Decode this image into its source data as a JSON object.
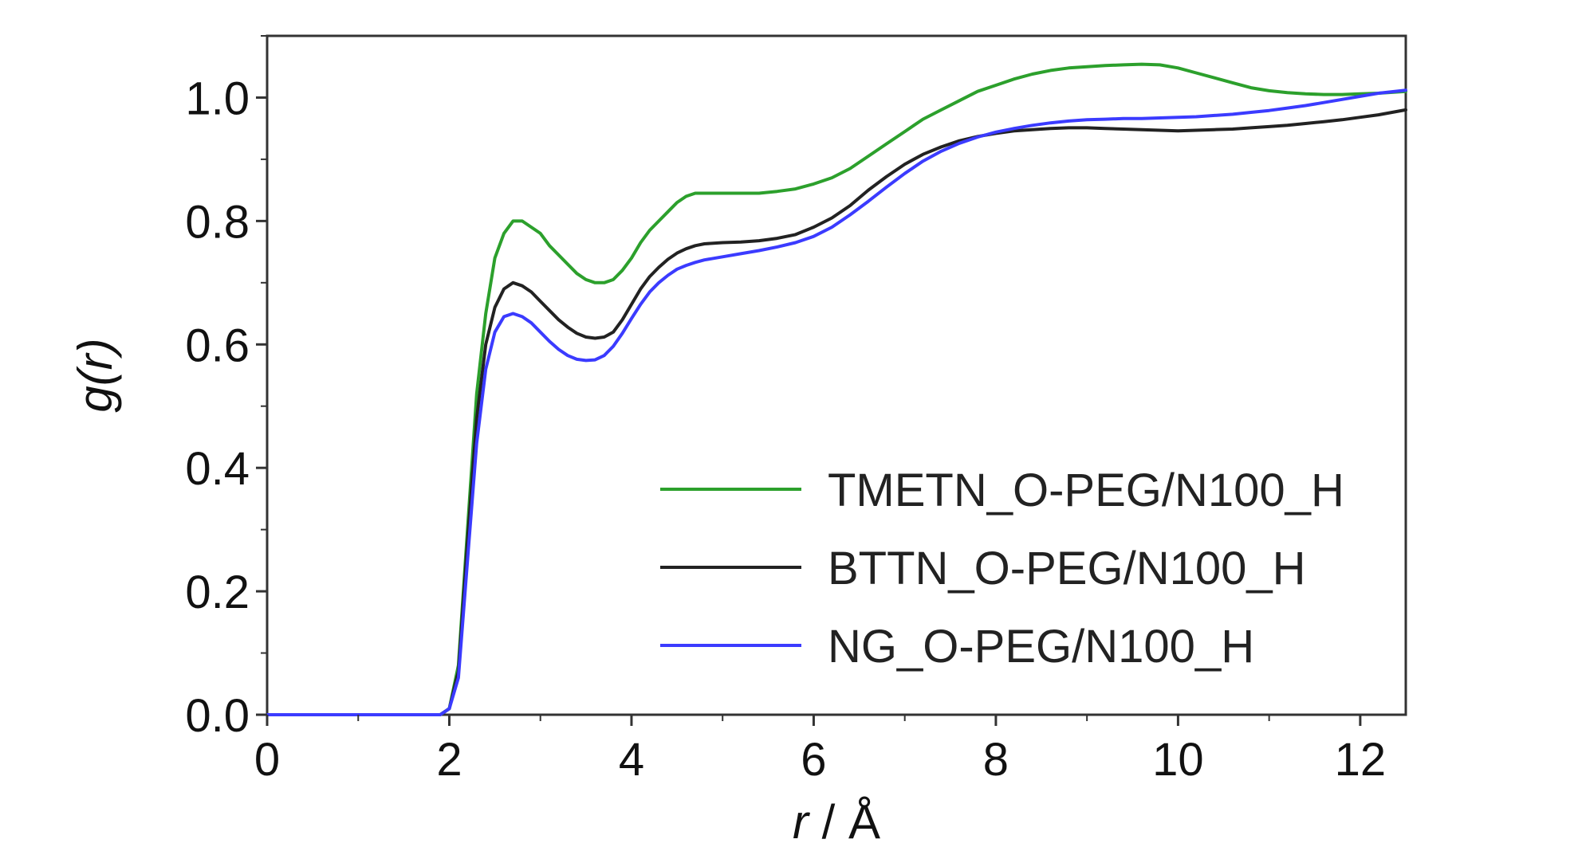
{
  "chart_data": {
    "type": "line",
    "title": "",
    "xlabel_var": "r",
    "xlabel_unit": " / Å",
    "ylabel_var": "g(",
    "ylabel_var_italic": "r",
    "ylabel_close": ")",
    "xlim": [
      0,
      12.5
    ],
    "ylim": [
      0,
      1.1
    ],
    "x_ticks": [
      0,
      2,
      4,
      6,
      8,
      10,
      12
    ],
    "x_tick_labels": [
      "0",
      "2",
      "4",
      "6",
      "8",
      "10",
      "12"
    ],
    "y_ticks": [
      0,
      0.2,
      0.4,
      0.6,
      0.8,
      1.0
    ],
    "y_tick_labels": [
      "0.0",
      "0.2",
      "0.4",
      "0.6",
      "0.8",
      "1.0"
    ],
    "grid": false,
    "legend_position": "bottom-right",
    "series": [
      {
        "name": "TMETN_O-PEG/N100_H",
        "color": "#2ca02c",
        "x": [
          0,
          1.9,
          2.0,
          2.1,
          2.2,
          2.3,
          2.4,
          2.5,
          2.6,
          2.7,
          2.8,
          2.9,
          3.0,
          3.1,
          3.2,
          3.3,
          3.4,
          3.5,
          3.6,
          3.7,
          3.8,
          3.9,
          4.0,
          4.1,
          4.2,
          4.3,
          4.4,
          4.5,
          4.6,
          4.7,
          4.8,
          5.0,
          5.2,
          5.4,
          5.6,
          5.8,
          6.0,
          6.2,
          6.4,
          6.6,
          6.8,
          7.0,
          7.2,
          7.4,
          7.6,
          7.8,
          8.0,
          8.2,
          8.4,
          8.6,
          8.8,
          9.0,
          9.2,
          9.4,
          9.6,
          9.8,
          10.0,
          10.2,
          10.4,
          10.6,
          10.8,
          11.0,
          11.2,
          11.4,
          11.6,
          11.8,
          12.0,
          12.2,
          12.5
        ],
        "y": [
          0.0,
          0.0,
          0.01,
          0.08,
          0.3,
          0.52,
          0.65,
          0.74,
          0.78,
          0.8,
          0.8,
          0.79,
          0.78,
          0.76,
          0.745,
          0.73,
          0.715,
          0.705,
          0.7,
          0.7,
          0.705,
          0.72,
          0.74,
          0.765,
          0.785,
          0.8,
          0.815,
          0.83,
          0.84,
          0.845,
          0.845,
          0.845,
          0.845,
          0.845,
          0.848,
          0.852,
          0.86,
          0.87,
          0.885,
          0.905,
          0.925,
          0.945,
          0.965,
          0.98,
          0.995,
          1.01,
          1.02,
          1.03,
          1.038,
          1.044,
          1.048,
          1.05,
          1.052,
          1.053,
          1.054,
          1.053,
          1.048,
          1.04,
          1.032,
          1.024,
          1.016,
          1.011,
          1.008,
          1.006,
          1.005,
          1.005,
          1.006,
          1.007,
          1.01
        ]
      },
      {
        "name": "BTTN_O-PEG/N100_H",
        "color": "#222222",
        "x": [
          0,
          1.9,
          2.0,
          2.1,
          2.2,
          2.3,
          2.4,
          2.5,
          2.6,
          2.7,
          2.8,
          2.9,
          3.0,
          3.1,
          3.2,
          3.3,
          3.4,
          3.5,
          3.6,
          3.7,
          3.8,
          3.9,
          4.0,
          4.1,
          4.2,
          4.3,
          4.4,
          4.5,
          4.6,
          4.7,
          4.8,
          5.0,
          5.2,
          5.4,
          5.6,
          5.8,
          6.0,
          6.2,
          6.4,
          6.6,
          6.8,
          7.0,
          7.2,
          7.4,
          7.6,
          7.8,
          8.0,
          8.2,
          8.4,
          8.6,
          8.8,
          9.0,
          9.2,
          9.4,
          9.6,
          9.8,
          10.0,
          10.2,
          10.4,
          10.6,
          10.8,
          11.0,
          11.2,
          11.4,
          11.6,
          11.8,
          12.0,
          12.2,
          12.5
        ],
        "y": [
          0.0,
          0.0,
          0.01,
          0.07,
          0.28,
          0.48,
          0.6,
          0.66,
          0.69,
          0.7,
          0.695,
          0.685,
          0.67,
          0.655,
          0.64,
          0.628,
          0.618,
          0.612,
          0.61,
          0.612,
          0.62,
          0.64,
          0.665,
          0.69,
          0.71,
          0.725,
          0.738,
          0.748,
          0.755,
          0.76,
          0.763,
          0.765,
          0.766,
          0.768,
          0.772,
          0.778,
          0.79,
          0.805,
          0.825,
          0.85,
          0.872,
          0.892,
          0.908,
          0.92,
          0.93,
          0.937,
          0.942,
          0.946,
          0.948,
          0.95,
          0.951,
          0.951,
          0.95,
          0.949,
          0.948,
          0.947,
          0.946,
          0.947,
          0.948,
          0.949,
          0.951,
          0.953,
          0.955,
          0.958,
          0.961,
          0.964,
          0.968,
          0.972,
          0.98
        ]
      },
      {
        "name": "NG_O-PEG/N100_H",
        "color": "#3b3bff",
        "x": [
          0,
          1.9,
          2.0,
          2.1,
          2.2,
          2.3,
          2.4,
          2.5,
          2.6,
          2.7,
          2.8,
          2.9,
          3.0,
          3.1,
          3.2,
          3.3,
          3.4,
          3.5,
          3.6,
          3.7,
          3.8,
          3.9,
          4.0,
          4.1,
          4.2,
          4.3,
          4.4,
          4.5,
          4.6,
          4.7,
          4.8,
          5.0,
          5.2,
          5.4,
          5.6,
          5.8,
          6.0,
          6.2,
          6.4,
          6.6,
          6.8,
          7.0,
          7.2,
          7.4,
          7.6,
          7.8,
          8.0,
          8.2,
          8.4,
          8.6,
          8.8,
          9.0,
          9.2,
          9.4,
          9.6,
          9.8,
          10.0,
          10.2,
          10.4,
          10.6,
          10.8,
          11.0,
          11.2,
          11.4,
          11.6,
          11.8,
          12.0,
          12.2,
          12.5
        ],
        "y": [
          0.0,
          0.0,
          0.01,
          0.06,
          0.25,
          0.44,
          0.56,
          0.62,
          0.645,
          0.65,
          0.645,
          0.635,
          0.62,
          0.605,
          0.592,
          0.582,
          0.576,
          0.574,
          0.575,
          0.582,
          0.597,
          0.618,
          0.642,
          0.665,
          0.685,
          0.7,
          0.712,
          0.722,
          0.728,
          0.733,
          0.737,
          0.742,
          0.747,
          0.752,
          0.758,
          0.765,
          0.775,
          0.79,
          0.81,
          0.832,
          0.855,
          0.877,
          0.897,
          0.913,
          0.926,
          0.936,
          0.944,
          0.95,
          0.955,
          0.959,
          0.962,
          0.964,
          0.965,
          0.966,
          0.966,
          0.967,
          0.968,
          0.969,
          0.971,
          0.973,
          0.976,
          0.979,
          0.983,
          0.987,
          0.992,
          0.997,
          1.002,
          1.007,
          1.012
        ]
      }
    ]
  }
}
